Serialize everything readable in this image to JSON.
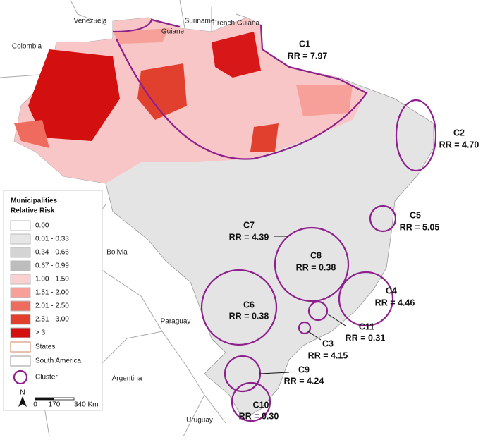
{
  "countries": [
    "Venezuela",
    "Suriname",
    "French Guiana",
    "Guiane",
    "Colombia",
    "Bolivia",
    "Paraguay",
    "Argentina",
    "Uruguay"
  ],
  "clusters": [
    {
      "name": "C1",
      "label": "RR = 7.97"
    },
    {
      "name": "C2",
      "label": "RR = 4.70"
    },
    {
      "name": "C5",
      "label": "RR = 5.05"
    },
    {
      "name": "C7",
      "label": "RR = 4.39"
    },
    {
      "name": "C8",
      "label": "RR = 0.38"
    },
    {
      "name": "C4",
      "label": "RR = 4.46"
    },
    {
      "name": "C6",
      "label": "RR = 0.38"
    },
    {
      "name": "C11",
      "label": "RR = 0.31"
    },
    {
      "name": "C3",
      "label": "RR = 4.15"
    },
    {
      "name": "C9",
      "label": "RR = 4.24"
    },
    {
      "name": "C10",
      "label": "RR = 0.30"
    }
  ],
  "legend": {
    "title": [
      "Municipalities",
      "Relative Risk"
    ],
    "classes": [
      {
        "label": "0.00",
        "color": "#ffffff"
      },
      {
        "label": "0.01 - 0.33",
        "color": "#e6e6e6"
      },
      {
        "label": "0.34 - 0.66",
        "color": "#d4d4d4"
      },
      {
        "label": "0.67 - 0.99",
        "color": "#bdbdbd"
      },
      {
        "label": "1.00 - 1.50",
        "color": "#fbd0d0"
      },
      {
        "label": "1.51 - 2.00",
        "color": "#f7a09a"
      },
      {
        "label": "2.01 - 2.50",
        "color": "#ef6b5e"
      },
      {
        "label": "2.51 - 3.00",
        "color": "#e2402f"
      },
      {
        "label": "> 3",
        "color": "#d40f0f"
      }
    ],
    "layers": [
      "States",
      "South America",
      "Cluster"
    ]
  },
  "scale": {
    "north": "N",
    "ticks": [
      "0",
      "170",
      "340 Km"
    ]
  }
}
